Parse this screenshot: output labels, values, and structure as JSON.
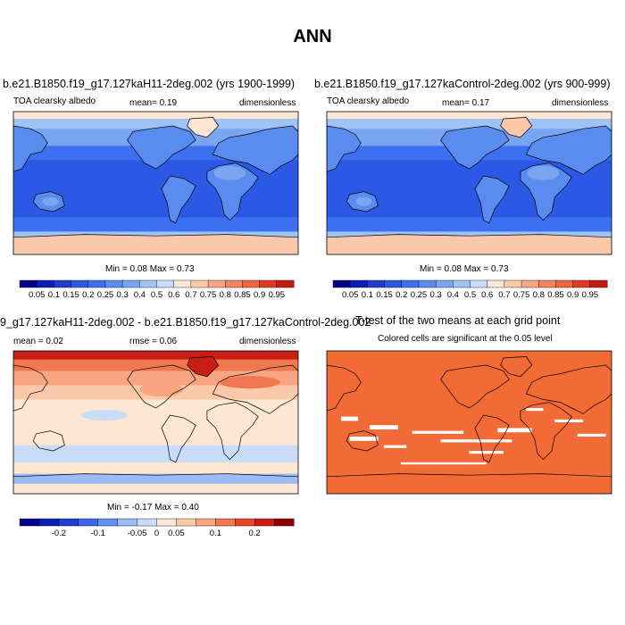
{
  "page_title": "ANN",
  "colors": {
    "albedo_scale": [
      "#00008c",
      "#0a1eb9",
      "#1e3cd2",
      "#2c58e6",
      "#3c70f0",
      "#5a8cf0",
      "#7aa5f0",
      "#a0c3f5",
      "#c8dcf8",
      "#fde6d2",
      "#fcc8aa",
      "#f9a582",
      "#f5825f",
      "#f06441",
      "#dc3c23",
      "#be1e14",
      "#8c0000"
    ],
    "diff_scale": [
      "#00008c",
      "#0a1eb9",
      "#1e3cd2",
      "#3c64eb",
      "#6490f0",
      "#9bbcf5",
      "#c8dcf8",
      "#fde6d2",
      "#fcc8aa",
      "#f9a582",
      "#f07850",
      "#e64628",
      "#c81e14",
      "#8c0000"
    ],
    "ttest_fill": "#f26a35"
  },
  "chart_data": [
    {
      "type": "heatmap",
      "title": "b.e21.B1850.f19_g17.127kaH11-2deg.002 (yrs 1900-1999)",
      "left_label": "TOA clearsky albedo",
      "center_label": "mean=  0.19",
      "right_label": "dimensionless",
      "min_max": "Min =  0.08 Max =  0.73",
      "colorbar_ticks": [
        "0.05",
        "0.1",
        "0.15",
        "0.2",
        "0.25",
        "0.3",
        "0.4",
        "0.5",
        "0.6",
        "0.7",
        "0.75",
        "0.8",
        "0.85",
        "0.9",
        "0.95"
      ]
    },
    {
      "type": "heatmap",
      "title": "b.e21.B1850.f19_g17.127kaControl-2deg.002 (yrs 900-999)",
      "left_label": "TOA clearsky albedo",
      "center_label": "mean=  0.17",
      "right_label": "dimensionless",
      "min_max": "Min =  0.08 Max =  0.73",
      "colorbar_ticks": [
        "0.05",
        "0.1",
        "0.15",
        "0.2",
        "0.25",
        "0.3",
        "0.4",
        "0.5",
        "0.6",
        "0.7",
        "0.75",
        "0.8",
        "0.85",
        "0.9",
        "0.95"
      ]
    },
    {
      "type": "heatmap",
      "title": "9_g17.127kaH11-2deg.002 - b.e21.B1850.f19_g17.127kaControl-2deg.002",
      "left_label": "mean =  0.02",
      "center_label": "rmse =  0.06",
      "right_label": "dimensionless",
      "min_max": "Min =  -0.17 Max =  0.40",
      "colorbar_ticks": [
        "-0.2",
        "-0.1",
        "-0.05",
        "0",
        "0.05",
        "0.1",
        "0.2"
      ]
    },
    {
      "type": "heatmap",
      "title": "T-test of the two means at each grid point",
      "subtitle": "Colored cells are significant at the 0.05 level"
    }
  ]
}
